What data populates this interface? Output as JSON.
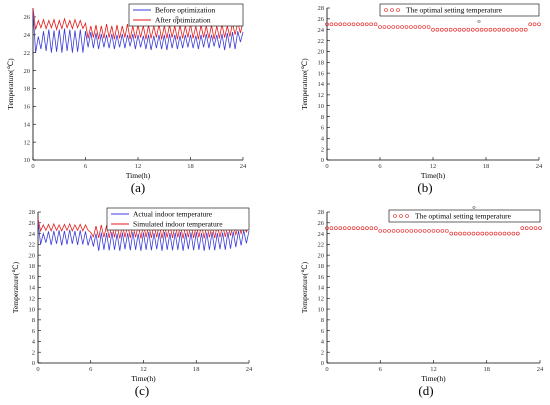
{
  "colors": {
    "blue": "#3b3bd8",
    "red": "#e51a1a",
    "axis": "#000000"
  },
  "chart_data": [
    {
      "type": "line",
      "panel_label": "(a)",
      "xlabel": "Time(h)",
      "ylabel": "Temperature(℃)",
      "xlim": [
        0,
        24
      ],
      "ylim": [
        10,
        27
      ],
      "xticks": [
        0,
        6,
        12,
        18,
        24
      ],
      "yticks": [
        10,
        12,
        14,
        16,
        18,
        20,
        22,
        24,
        26
      ],
      "ytick_labels": [
        "10",
        "12",
        "14",
        "16",
        "18",
        "20",
        "22",
        "24",
        "26"
      ],
      "xtick_labels": [
        "0",
        "6",
        "12",
        "18",
        "24"
      ],
      "legend": "top-right",
      "marker_note": "o",
      "series": [
        {
          "name": "Before optimization",
          "color": "blue",
          "style": "line",
          "x": [
            0,
            0.3,
            0.6,
            0.9,
            1.2,
            1.5,
            1.8,
            2.1,
            2.4,
            2.7,
            3,
            3.3,
            3.6,
            3.9,
            4.2,
            4.5,
            4.8,
            5.1,
            5.4,
            5.7,
            6,
            6.3,
            6.6,
            6.9,
            7.2,
            7.5,
            7.8,
            8.1,
            8.4,
            8.7,
            9,
            9.3,
            9.6,
            9.9,
            10.2,
            10.5,
            10.8,
            11.1,
            11.4,
            11.7,
            12,
            12.3,
            12.6,
            12.9,
            13.2,
            13.5,
            13.8,
            14.1,
            14.4,
            14.7,
            15,
            15.3,
            15.6,
            15.9,
            16.2,
            16.5,
            16.8,
            17.1,
            17.4,
            17.7,
            18,
            18.3,
            18.6,
            18.9,
            19.2,
            19.5,
            19.8,
            20.1,
            20.4,
            20.7,
            21,
            21.3,
            21.6,
            21.9,
            22.2,
            22.5,
            22.8,
            23.1,
            23.4,
            23.7,
            24
          ],
          "values": [
            26.8,
            22.0,
            23.8,
            22.4,
            24.4,
            22.2,
            24.6,
            22.0,
            24.5,
            22.1,
            24.6,
            22.0,
            24.7,
            22.2,
            24.6,
            22.0,
            24.5,
            22.1,
            24.6,
            22.0,
            24.4,
            22.6,
            24.3,
            22.5,
            24.2,
            22.4,
            24.1,
            22.6,
            24.0,
            22.5,
            24.1,
            22.4,
            24.0,
            22.6,
            24.1,
            22.5,
            24.0,
            22.7,
            24.1,
            22.4,
            24.0,
            22.6,
            23.9,
            22.4,
            24.0,
            22.3,
            23.9,
            22.5,
            24.0,
            22.4,
            24.0,
            22.3,
            24.1,
            22.5,
            24.0,
            22.4,
            23.9,
            22.5,
            24.0,
            22.6,
            24.0,
            22.5,
            23.9,
            22.4,
            24.0,
            22.6,
            24.1,
            22.5,
            24.0,
            22.7,
            24.0,
            22.5,
            24.1,
            22.3,
            24.2,
            22.5,
            24.3,
            22.4,
            24.4,
            23.2,
            24.3
          ]
        },
        {
          "name": "After optimization",
          "color": "red",
          "style": "line",
          "x": [
            0,
            0.3,
            0.6,
            0.9,
            1.2,
            1.5,
            1.8,
            2.1,
            2.4,
            2.7,
            3,
            3.3,
            3.6,
            3.9,
            4.2,
            4.5,
            4.8,
            5.1,
            5.4,
            5.7,
            6,
            6.3,
            6.6,
            6.9,
            7.2,
            7.5,
            7.8,
            8.1,
            8.4,
            8.7,
            9,
            9.3,
            9.6,
            9.9,
            10.2,
            10.5,
            10.8,
            11.1,
            11.4,
            11.7,
            12,
            12.3,
            12.6,
            12.9,
            13.2,
            13.5,
            13.8,
            14.1,
            14.4,
            14.7,
            15,
            15.3,
            15.6,
            15.9,
            16.2,
            16.5,
            16.8,
            17.1,
            17.4,
            17.7,
            18,
            18.3,
            18.6,
            18.9,
            19.2,
            19.5,
            19.8,
            20.1,
            20.4,
            20.7,
            21,
            21.3,
            21.6,
            21.9,
            22.2,
            22.5,
            22.8,
            23.1,
            23.4,
            23.7,
            24
          ],
          "values": [
            27.0,
            24.6,
            25.6,
            24.8,
            25.7,
            24.7,
            25.6,
            24.8,
            25.7,
            24.6,
            25.6,
            24.7,
            25.8,
            24.8,
            25.6,
            24.7,
            25.7,
            24.8,
            25.6,
            24.7,
            25.3,
            23.6,
            25.0,
            23.7,
            25.1,
            23.5,
            25.0,
            23.6,
            25.2,
            23.7,
            25.0,
            23.5,
            25.1,
            23.6,
            25.0,
            23.7,
            25.2,
            23.5,
            25.0,
            23.6,
            25.1,
            23.7,
            25.0,
            23.5,
            25.1,
            23.6,
            25.0,
            23.7,
            25.2,
            23.5,
            25.0,
            23.6,
            25.1,
            23.7,
            25.0,
            23.5,
            25.1,
            23.6,
            25.0,
            23.7,
            25.2,
            23.6,
            25.0,
            23.5,
            25.1,
            23.7,
            25.0,
            23.6,
            25.1,
            23.5,
            25.0,
            23.6,
            25.2,
            23.7,
            25.0,
            23.8,
            25.3,
            24.0,
            25.4,
            24.2,
            25.5
          ]
        }
      ]
    },
    {
      "type": "scatter",
      "panel_label": "(b)",
      "xlabel": "Time(h)",
      "ylabel": "Temperature(℃)",
      "xlim": [
        0,
        24
      ],
      "ylim": [
        0,
        28
      ],
      "xticks": [
        0,
        6,
        12,
        18,
        24
      ],
      "yticks": [
        0,
        2,
        4,
        6,
        8,
        10,
        12,
        14,
        16,
        18,
        20,
        22,
        24,
        26,
        28
      ],
      "ytick_labels": [
        "0",
        "2",
        "4",
        "6",
        "8",
        "10",
        "12",
        "14",
        "16",
        "18",
        "20",
        "22",
        "24",
        "26",
        "28"
      ],
      "xtick_labels": [
        "0",
        "6",
        "12",
        "18",
        "24"
      ],
      "legend": "top-right",
      "marker_note": "o",
      "series": [
        {
          "name": "The optimal setting temperature",
          "color": "red",
          "style": "marker",
          "x": [
            0,
            0.5,
            1,
            1.5,
            2,
            2.5,
            3,
            3.5,
            4,
            4.5,
            5,
            5.5,
            6,
            6.5,
            7,
            7.5,
            8,
            8.5,
            9,
            9.5,
            10,
            10.5,
            11,
            11.5,
            12,
            12.5,
            13,
            13.5,
            14,
            14.5,
            15,
            15.5,
            16,
            16.5,
            17,
            17.5,
            18,
            18.5,
            19,
            19.5,
            20,
            20.5,
            21,
            21.5,
            22,
            22.5,
            23,
            23.5,
            24
          ],
          "values": [
            25,
            25,
            25,
            25,
            25,
            25,
            25,
            25,
            25,
            25,
            25,
            25,
            24.5,
            24.5,
            24.5,
            24.5,
            24.5,
            24.5,
            24.5,
            24.5,
            24.5,
            24.5,
            24.5,
            24.5,
            24,
            24,
            24,
            24,
            24,
            24,
            24,
            24,
            24,
            24,
            24,
            24,
            24,
            24,
            24,
            24,
            24,
            24,
            24,
            24,
            24,
            24,
            25,
            25,
            25
          ]
        }
      ]
    },
    {
      "type": "line",
      "panel_label": "(c)",
      "xlabel": "Time(h)",
      "ylabel": "Temperature(℃)",
      "xlim": [
        0,
        24
      ],
      "ylim": [
        0,
        28
      ],
      "xticks": [
        0,
        6,
        12,
        18,
        24
      ],
      "yticks": [
        0,
        2,
        4,
        6,
        8,
        10,
        12,
        14,
        16,
        18,
        20,
        22,
        24,
        26,
        28
      ],
      "ytick_labels": [
        "0",
        "2",
        "4",
        "6",
        "8",
        "10",
        "12",
        "14",
        "16",
        "18",
        "20",
        "22",
        "24",
        "26",
        "28"
      ],
      "xtick_labels": [
        "0",
        "6",
        "12",
        "18",
        "24"
      ],
      "legend": "top-right",
      "series": [
        {
          "name": "Actual indoor temperature",
          "color": "blue",
          "style": "line",
          "x": [
            0,
            0.3,
            0.6,
            0.9,
            1.2,
            1.5,
            1.8,
            2.1,
            2.4,
            2.7,
            3,
            3.3,
            3.6,
            3.9,
            4.2,
            4.5,
            4.8,
            5.1,
            5.4,
            5.7,
            6,
            6.3,
            6.6,
            6.9,
            7.2,
            7.5,
            7.8,
            8.1,
            8.4,
            8.7,
            9,
            9.3,
            9.6,
            9.9,
            10.2,
            10.5,
            10.8,
            11.1,
            11.4,
            11.7,
            12,
            12.3,
            12.6,
            12.9,
            13.2,
            13.5,
            13.8,
            14.1,
            14.4,
            14.7,
            15,
            15.3,
            15.6,
            15.9,
            16.2,
            16.5,
            16.8,
            17.1,
            17.4,
            17.7,
            18,
            18.3,
            18.6,
            18.9,
            19.2,
            19.5,
            19.8,
            20.1,
            20.4,
            20.7,
            21,
            21.3,
            21.6,
            21.9,
            22.2,
            22.5,
            22.8,
            23.1,
            23.4,
            23.7,
            24
          ],
          "values": [
            26.5,
            22.0,
            24.0,
            22.3,
            24.4,
            21.9,
            24.5,
            22.1,
            24.6,
            21.8,
            24.5,
            22.0,
            24.7,
            22.1,
            24.5,
            21.9,
            24.6,
            22.0,
            24.4,
            21.8,
            23.6,
            21.6,
            24.0,
            20.8,
            24.2,
            21.0,
            24.1,
            20.9,
            24.3,
            21.0,
            24.0,
            20.8,
            24.2,
            21.1,
            24.1,
            20.9,
            24.3,
            21.0,
            24.0,
            20.8,
            24.2,
            21.0,
            24.3,
            20.9,
            24.1,
            21.1,
            24.2,
            20.8,
            24.3,
            21.0,
            24.1,
            20.9,
            24.2,
            21.0,
            24.3,
            20.8,
            24.1,
            21.1,
            24.2,
            20.9,
            24.3,
            21.0,
            24.1,
            20.8,
            24.2,
            21.0,
            24.3,
            20.9,
            24.1,
            21.1,
            24.2,
            21.0,
            24.3,
            21.2,
            24.4,
            21.5,
            24.5,
            21.8,
            24.6,
            22.2,
            24.5
          ]
        },
        {
          "name": "Simulated indoor temperature",
          "color": "red",
          "style": "line",
          "x": [
            0,
            0.3,
            0.6,
            0.9,
            1.2,
            1.5,
            1.8,
            2.1,
            2.4,
            2.7,
            3,
            3.3,
            3.6,
            3.9,
            4.2,
            4.5,
            4.8,
            5.1,
            5.4,
            5.7,
            6,
            6.3,
            6.6,
            6.9,
            7.2,
            7.5,
            7.8,
            8.1,
            8.4,
            8.7,
            9,
            9.3,
            9.6,
            9.9,
            10.2,
            10.5,
            10.8,
            11.1,
            11.4,
            11.7,
            12,
            12.3,
            12.6,
            12.9,
            13.2,
            13.5,
            13.8,
            14.1,
            14.4,
            14.7,
            15,
            15.3,
            15.6,
            15.9,
            16.2,
            16.5,
            16.8,
            17.1,
            17.4,
            17.7,
            18,
            18.3,
            18.6,
            18.9,
            19.2,
            19.5,
            19.8,
            20.1,
            20.4,
            20.7,
            21,
            21.3,
            21.6,
            21.9,
            22.2,
            22.5,
            22.8,
            23.1,
            23.4,
            23.7,
            24
          ],
          "values": [
            26.8,
            24.5,
            25.6,
            24.6,
            25.7,
            24.5,
            25.8,
            24.6,
            25.6,
            24.5,
            25.7,
            24.6,
            25.8,
            24.5,
            25.6,
            24.6,
            25.7,
            24.5,
            25.6,
            24.6,
            24.2,
            23.4,
            25.4,
            23.2,
            25.6,
            23.3,
            25.5,
            23.2,
            25.7,
            23.3,
            25.5,
            23.1,
            25.6,
            23.3,
            25.7,
            23.2,
            25.5,
            23.3,
            25.6,
            23.1,
            25.7,
            23.3,
            25.5,
            23.2,
            25.6,
            23.3,
            25.7,
            23.1,
            25.5,
            23.3,
            25.6,
            23.2,
            25.7,
            23.3,
            25.5,
            23.1,
            25.6,
            23.3,
            25.7,
            23.2,
            25.5,
            23.3,
            25.6,
            23.1,
            25.7,
            23.3,
            25.5,
            23.2,
            25.6,
            23.3,
            25.5,
            23.4,
            25.6,
            23.6,
            25.7,
            23.8,
            25.6,
            24.0,
            25.7,
            24.3,
            25.6
          ]
        }
      ]
    },
    {
      "type": "scatter",
      "panel_label": "(d)",
      "xlabel": "Time(h)",
      "ylabel": "Temperature(℃)",
      "xlim": [
        0,
        24
      ],
      "ylim": [
        0,
        28
      ],
      "xticks": [
        0,
        6,
        12,
        18,
        24
      ],
      "yticks": [
        0,
        2,
        4,
        6,
        8,
        10,
        12,
        14,
        16,
        18,
        20,
        22,
        24,
        26,
        28
      ],
      "ytick_labels": [
        "0",
        "2",
        "4",
        "6",
        "8",
        "10",
        "12",
        "14",
        "16",
        "18",
        "20",
        "22",
        "24",
        "26",
        "28"
      ],
      "xtick_labels": [
        "0",
        "6",
        "12",
        "18",
        "24"
      ],
      "legend": "top-right",
      "marker_note": "o",
      "series": [
        {
          "name": "The optimal setting temperature",
          "color": "red",
          "style": "marker",
          "x": [
            0,
            0.5,
            1,
            1.5,
            2,
            2.5,
            3,
            3.5,
            4,
            4.5,
            5,
            5.5,
            6,
            6.5,
            7,
            7.5,
            8,
            8.5,
            9,
            9.5,
            10,
            10.5,
            11,
            11.5,
            12,
            12.5,
            13,
            13.5,
            14,
            14.5,
            15,
            15.5,
            16,
            16.5,
            17,
            17.5,
            18,
            18.5,
            19,
            19.5,
            20,
            20.5,
            21,
            21.5,
            22,
            22.5,
            23,
            23.5,
            24
          ],
          "values": [
            25,
            25,
            25,
            25,
            25,
            25,
            25,
            25,
            25,
            25,
            25,
            25,
            24.5,
            24.5,
            24.5,
            24.5,
            24.5,
            24.5,
            24.5,
            24.5,
            24.5,
            24.5,
            24.5,
            24.5,
            24.5,
            24.5,
            24.5,
            24.5,
            24,
            24,
            24,
            24,
            24,
            24,
            24,
            24,
            24,
            24,
            24,
            24,
            24,
            24,
            24,
            24,
            25,
            25,
            25,
            25,
            25
          ]
        }
      ]
    }
  ]
}
